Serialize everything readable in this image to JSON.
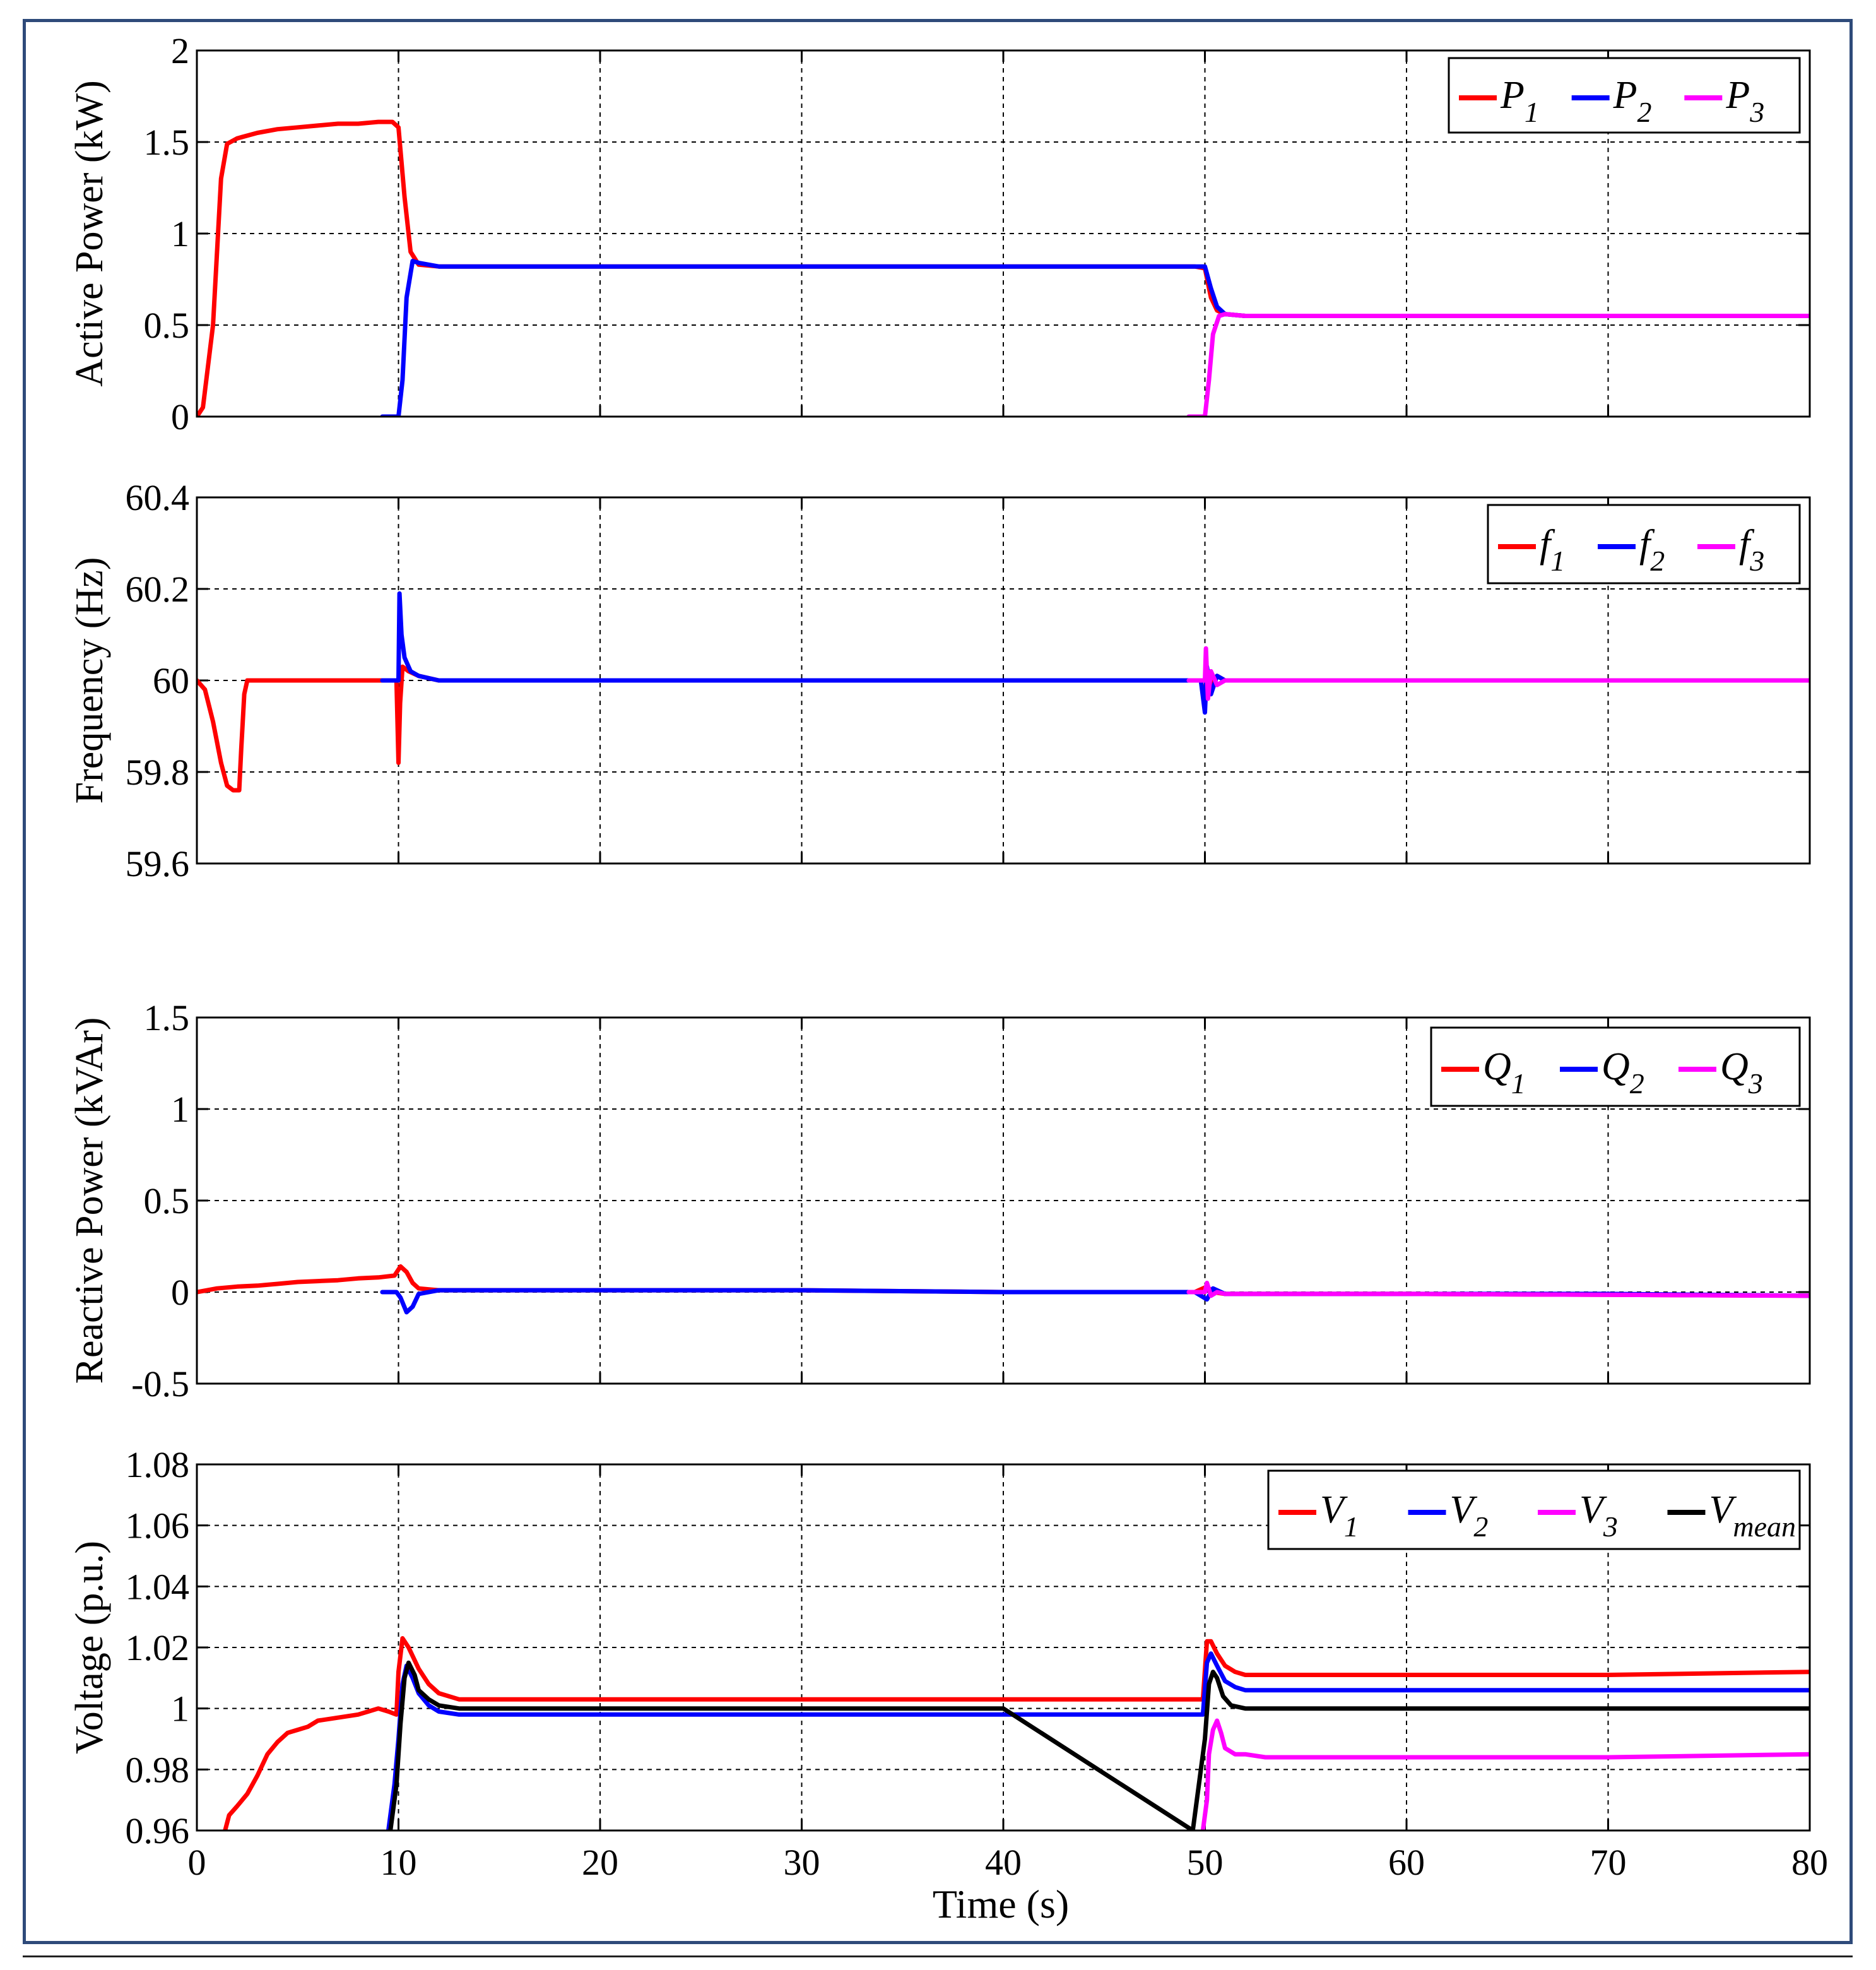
{
  "colors": {
    "red": "#ff0000",
    "blue": "#0000ff",
    "magenta": "#ff00ff",
    "black": "#000000",
    "frame": "#2e4a7a"
  },
  "x_axis": {
    "label": "Time (s)",
    "xlim": [
      0,
      80
    ],
    "ticks": [
      "0",
      "10",
      "20",
      "30",
      "40",
      "50",
      "60",
      "70",
      "80"
    ]
  },
  "chart_data": [
    {
      "type": "line",
      "ylabel": "Active Power (kW)",
      "xlim": [
        0,
        80
      ],
      "ylim": [
        0,
        2
      ],
      "grid": true,
      "legend_position": "top-right",
      "yticks": [
        "0",
        "0.5",
        "1",
        "1.5",
        "2"
      ],
      "legend": [
        {
          "base": "P",
          "sub": "1",
          "color": "#ff0000"
        },
        {
          "base": "P",
          "sub": "2",
          "color": "#0000ff"
        },
        {
          "base": "P",
          "sub": "3",
          "color": "#ff00ff"
        }
      ],
      "series": [
        {
          "name": "P1",
          "color": "#ff0000",
          "x": [
            0,
            0.3,
            0.8,
            1.2,
            1.5,
            2,
            3,
            4,
            5,
            6,
            7,
            8,
            9,
            9.7,
            10,
            10.3,
            10.6,
            11,
            12,
            20,
            30,
            40,
            49.5,
            50,
            50.3,
            50.6,
            51,
            52,
            60,
            70,
            80
          ],
          "y": [
            0,
            0.05,
            0.5,
            1.3,
            1.49,
            1.52,
            1.55,
            1.57,
            1.58,
            1.59,
            1.6,
            1.6,
            1.61,
            1.61,
            1.58,
            1.2,
            0.9,
            0.83,
            0.82,
            0.82,
            0.82,
            0.82,
            0.82,
            0.81,
            0.65,
            0.58,
            0.56,
            0.55,
            0.55,
            0.55,
            0.55
          ]
        },
        {
          "name": "P2",
          "color": "#0000ff",
          "x": [
            9.2,
            10,
            10.2,
            10.4,
            10.7,
            11,
            12,
            20,
            30,
            40,
            49.5,
            50,
            50.3,
            50.6,
            51,
            52,
            60,
            70,
            80
          ],
          "y": [
            0,
            0,
            0.2,
            0.65,
            0.85,
            0.84,
            0.82,
            0.82,
            0.82,
            0.82,
            0.82,
            0.82,
            0.7,
            0.6,
            0.56,
            0.55,
            0.55,
            0.55,
            0.55
          ]
        },
        {
          "name": "P3",
          "color": "#ff00ff",
          "x": [
            49.2,
            50,
            50.2,
            50.4,
            50.7,
            51,
            52,
            60,
            70,
            80
          ],
          "y": [
            0,
            0,
            0.2,
            0.45,
            0.55,
            0.56,
            0.55,
            0.55,
            0.55,
            0.55
          ]
        }
      ]
    },
    {
      "type": "line",
      "ylabel": "Frequency (Hz)",
      "xlim": [
        0,
        80
      ],
      "ylim": [
        59.6,
        60.4
      ],
      "grid": true,
      "legend_position": "top-right",
      "yticks": [
        "59.6",
        "59.8",
        "60",
        "60.2",
        "60.4"
      ],
      "legend": [
        {
          "base": "f",
          "sub": "1",
          "color": "#ff0000"
        },
        {
          "base": "f",
          "sub": "2",
          "color": "#0000ff"
        },
        {
          "base": "f",
          "sub": "3",
          "color": "#ff00ff"
        }
      ],
      "series": [
        {
          "name": "f1",
          "color": "#ff0000",
          "x": [
            0,
            0.4,
            0.8,
            1.2,
            1.5,
            1.8,
            2.1,
            2.2,
            2.35,
            2.5,
            3,
            9.9,
            10.0,
            10.08,
            10.2,
            10.5,
            11,
            12,
            20,
            30,
            40,
            49.8,
            50.0,
            50.1,
            50.3,
            50.6,
            51,
            52,
            60,
            70,
            80
          ],
          "y": [
            60,
            59.98,
            59.91,
            59.82,
            59.77,
            59.76,
            59.76,
            59.85,
            59.97,
            60,
            60,
            60,
            59.82,
            59.95,
            60.03,
            60.02,
            60.01,
            60,
            60,
            60,
            60,
            60,
            59.95,
            60.02,
            59.99,
            60.01,
            60,
            60,
            60,
            60,
            60
          ]
        },
        {
          "name": "f2",
          "color": "#0000ff",
          "x": [
            9.2,
            9.9,
            10.0,
            10.05,
            10.15,
            10.3,
            10.6,
            11,
            12,
            20,
            30,
            40,
            49.8,
            50.0,
            50.1,
            50.3,
            50.6,
            51,
            52,
            60,
            70,
            80
          ],
          "y": [
            60,
            60,
            60,
            60.19,
            60.1,
            60.05,
            60.02,
            60.01,
            60,
            60,
            60,
            60,
            60,
            59.93,
            60.03,
            59.97,
            60.01,
            60,
            60,
            60,
            60,
            60
          ]
        },
        {
          "name": "f3",
          "color": "#ff00ff",
          "x": [
            49.2,
            49.9,
            50.0,
            50.05,
            50.15,
            50.3,
            50.6,
            51,
            52,
            60,
            70,
            80
          ],
          "y": [
            60,
            60,
            60,
            60.07,
            59.96,
            60.02,
            59.99,
            60,
            60,
            60,
            60,
            60
          ]
        }
      ]
    },
    {
      "type": "line",
      "ylabel": "Reactive Power (kVAr)",
      "xlim": [
        0,
        80
      ],
      "ylim": [
        -0.5,
        1.5
      ],
      "grid": true,
      "legend_position": "top-right",
      "yticks": [
        "-0.5",
        "0",
        "0.5",
        "1",
        "1.5"
      ],
      "legend": [
        {
          "base": "Q",
          "sub": "1",
          "color": "#ff0000"
        },
        {
          "base": "Q",
          "sub": "2",
          "color": "#0000ff"
        },
        {
          "base": "Q",
          "sub": "3",
          "color": "#ff00ff"
        }
      ],
      "series": [
        {
          "name": "Q1",
          "color": "#ff0000",
          "x": [
            0,
            1,
            2,
            3,
            4,
            5,
            6,
            7,
            8,
            9,
            9.8,
            10.1,
            10.4,
            10.7,
            11,
            12,
            20,
            30,
            40,
            49.5,
            50.1,
            50.4,
            51,
            52,
            60,
            70,
            80
          ],
          "y": [
            0,
            0.02,
            0.03,
            0.035,
            0.045,
            0.055,
            0.06,
            0.065,
            0.075,
            0.08,
            0.09,
            0.14,
            0.11,
            0.05,
            0.02,
            0.01,
            0.01,
            0.01,
            0.0,
            0.0,
            0.03,
            0.0,
            -0.01,
            -0.01,
            -0.01,
            -0.015,
            -0.02
          ]
        },
        {
          "name": "Q2",
          "color": "#0000ff",
          "x": [
            9.2,
            9.9,
            10.1,
            10.4,
            10.7,
            11,
            12,
            20,
            30,
            40,
            49.5,
            50.1,
            50.4,
            51,
            52,
            60,
            70,
            80
          ],
          "y": [
            0,
            0,
            -0.03,
            -0.11,
            -0.08,
            -0.01,
            0.01,
            0.01,
            0.01,
            0.0,
            0.0,
            -0.04,
            0.02,
            -0.01,
            -0.01,
            -0.01,
            -0.01,
            -0.02
          ]
        },
        {
          "name": "Q3",
          "color": "#ff00ff",
          "x": [
            49.2,
            50.0,
            50.1,
            50.3,
            50.6,
            51,
            52,
            60,
            70,
            80
          ],
          "y": [
            0,
            0,
            0.05,
            -0.02,
            0.0,
            -0.01,
            -0.01,
            -0.01,
            -0.015,
            -0.02
          ]
        }
      ]
    },
    {
      "type": "line",
      "ylabel": "Voltage (p.u.)",
      "xlim": [
        0,
        80
      ],
      "ylim": [
        0.96,
        1.08
      ],
      "grid": true,
      "legend_position": "top-right",
      "yticks": [
        "0.96",
        "0.98",
        "1",
        "1.02",
        "1.04",
        "1.06",
        "1.08"
      ],
      "legend": [
        {
          "base": "V",
          "sub": "1",
          "color": "#ff0000"
        },
        {
          "base": "V",
          "sub": "2",
          "color": "#0000ff"
        },
        {
          "base": "V",
          "sub": "3",
          "color": "#ff00ff"
        },
        {
          "base": "V",
          "sub": "mean",
          "color": "#000000"
        }
      ],
      "series": [
        {
          "name": "V1",
          "color": "#ff0000",
          "x": [
            1.4,
            1.6,
            2,
            2.5,
            3,
            3.5,
            4,
            4.5,
            5,
            5.5,
            6,
            7,
            8,
            8.5,
            9,
            9.5,
            9.9,
            10.0,
            10.2,
            10.5,
            11,
            11.5,
            12,
            13,
            20,
            30,
            40,
            49.5,
            49.9,
            50.1,
            50.3,
            50.6,
            51,
            51.5,
            52,
            53,
            60,
            70,
            80
          ],
          "y": [
            0.96,
            0.965,
            0.968,
            0.972,
            0.978,
            0.985,
            0.989,
            0.992,
            0.993,
            0.994,
            0.996,
            0.997,
            0.998,
            0.999,
            1.0,
            0.999,
            0.998,
            1.012,
            1.023,
            1.02,
            1.013,
            1.008,
            1.005,
            1.003,
            1.003,
            1.003,
            1.003,
            1.003,
            1.003,
            1.022,
            1.022,
            1.018,
            1.014,
            1.012,
            1.011,
            1.011,
            1.011,
            1.011,
            1.012
          ]
        },
        {
          "name": "V2",
          "color": "#0000ff",
          "x": [
            9.5,
            9.8,
            10.0,
            10.2,
            10.4,
            10.7,
            11,
            11.5,
            12,
            13,
            20,
            30,
            40,
            49.5,
            49.9,
            50.1,
            50.3,
            50.6,
            51,
            51.5,
            52,
            53,
            60,
            70,
            80
          ],
          "y": [
            0.96,
            0.975,
            0.99,
            1.008,
            1.014,
            1.01,
            1.005,
            1.001,
            0.999,
            0.998,
            0.998,
            0.998,
            0.998,
            0.998,
            0.998,
            1.015,
            1.018,
            1.014,
            1.009,
            1.007,
            1.006,
            1.006,
            1.006,
            1.006,
            1.006
          ]
        },
        {
          "name": "V3",
          "color": "#ff00ff",
          "x": [
            49.9,
            50.1,
            50.2,
            50.4,
            50.6,
            50.8,
            51.0,
            51.5,
            52,
            53,
            60,
            70,
            80
          ],
          "y": [
            0.96,
            0.97,
            0.985,
            0.993,
            0.996,
            0.992,
            0.987,
            0.985,
            0.985,
            0.984,
            0.984,
            0.984,
            0.985
          ]
        },
        {
          "name": "Vmean",
          "color": "#000000",
          "x": [
            9.6,
            9.9,
            10.1,
            10.3,
            10.5,
            10.8,
            11,
            11.5,
            12,
            13,
            20,
            30,
            40,
            49.4,
            49.7,
            50.0,
            50.2,
            50.4,
            50.6,
            50.9,
            51.3,
            52,
            53,
            60,
            70,
            80
          ],
          "y": [
            0.96,
            0.975,
            0.995,
            1.01,
            1.015,
            1.011,
            1.006,
            1.003,
            1.001,
            1.0,
            1.0,
            1.0,
            1.0,
            0.96,
            0.975,
            0.99,
            1.008,
            1.012,
            1.01,
            1.004,
            1.001,
            1.0,
            1.0,
            1.0,
            1.0,
            1.0
          ]
        }
      ]
    }
  ]
}
